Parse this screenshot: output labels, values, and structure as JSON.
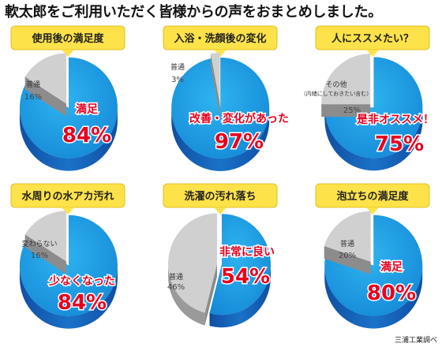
{
  "title": "軟太郎をご利用いただく皆様からの声をおまとめしました。",
  "source": "三浦工業調べ",
  "colors": {
    "accent": "#1a9be0",
    "accent_dark": "#1466b8",
    "other": "#d0d0d0",
    "label": "#e6001e",
    "caption": "#fde24a"
  },
  "chart_data": [
    {
      "type": "pie",
      "title": "使用後の満足度",
      "slices": [
        {
          "label": "満足",
          "value": 84
        },
        {
          "label": "普通",
          "value": 16
        }
      ]
    },
    {
      "type": "pie",
      "title": "入浴・洗顔後の変化",
      "slices": [
        {
          "label": "改善・変化があった",
          "value": 97
        },
        {
          "label": "普通",
          "value": 3
        }
      ]
    },
    {
      "type": "pie",
      "title": "人にススメたい？",
      "slices": [
        {
          "label": "是非オススメ！",
          "value": 75
        },
        {
          "label": "その他",
          "sublabel": "（内緒にしておきたい含む）",
          "value": 25
        }
      ]
    },
    {
      "type": "pie",
      "title": "水周りの水アカ汚れ",
      "slices": [
        {
          "label": "少なくなった",
          "value": 84
        },
        {
          "label": "変わらない",
          "value": 16
        }
      ]
    },
    {
      "type": "pie",
      "title": "洗濯の汚れ落ち",
      "slices": [
        {
          "label": "非常に良い",
          "value": 54
        },
        {
          "label": "普通",
          "value": 46
        }
      ]
    },
    {
      "type": "pie",
      "title": "泡立ちの満足度",
      "slices": [
        {
          "label": "満足",
          "value": 80
        },
        {
          "label": "普通",
          "value": 20
        }
      ]
    }
  ]
}
